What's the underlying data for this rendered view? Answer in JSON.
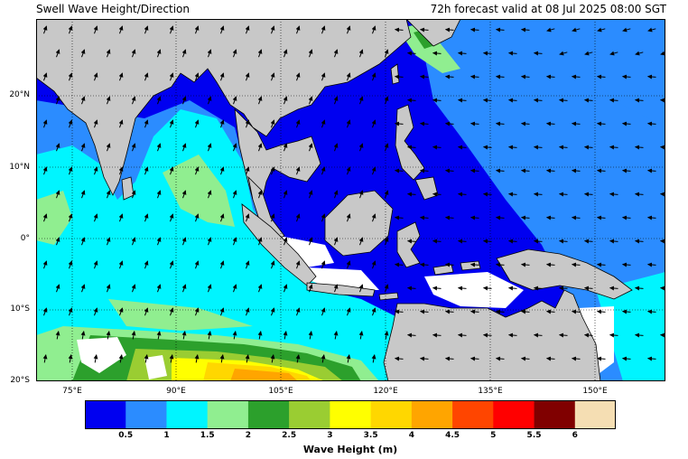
{
  "header": {
    "title": "Swell Wave Height/Direction",
    "valid": "72h forecast valid at 08 Jul 2025 08:00 SGT"
  },
  "map": {
    "lon_range": [
      68,
      155
    ],
    "lat_range": [
      -20,
      30
    ],
    "lat_labels": [
      "20°N",
      "10°N",
      "0°",
      "10°S",
      "20°S"
    ],
    "lon_labels": [
      "75°E",
      "90°E",
      "105°E",
      "120°E",
      "135°E",
      "150°E"
    ],
    "land_color": "#c8c8c8",
    "grid": "dotted"
  },
  "colorbar": {
    "label": "Wave Height (m)",
    "ticks": [
      "0.5",
      "1",
      "1.5",
      "2",
      "2.5",
      "3",
      "3.5",
      "4",
      "4.5",
      "5",
      "5.5",
      "6"
    ],
    "colors": [
      "#0000f0",
      "#2b8cff",
      "#00f5ff",
      "#90ee90",
      "#2ca02c",
      "#9acd32",
      "#ffff00",
      "#ffd700",
      "#ffa500",
      "#ff4500",
      "#ff0000",
      "#800000",
      "#f5deb3"
    ]
  }
}
